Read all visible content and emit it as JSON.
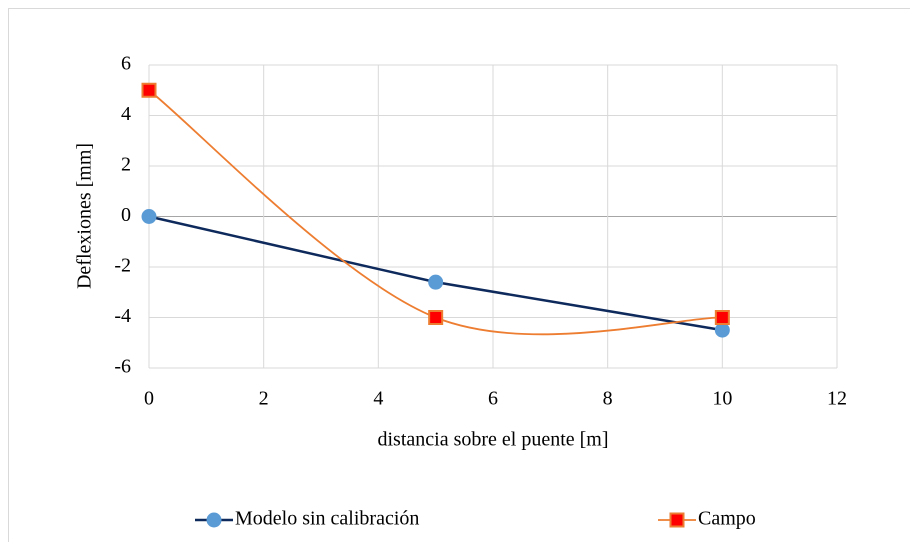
{
  "chart_data": {
    "type": "line",
    "xlabel": "distancia sobre el puente [m]",
    "ylabel": "Deflexiones [mm]",
    "xlim": [
      0,
      12
    ],
    "xticks": [
      0,
      2,
      4,
      6,
      8,
      10,
      12
    ],
    "ylim": [
      -6,
      6
    ],
    "yticks": [
      -6,
      -4,
      -2,
      0,
      2,
      4,
      6
    ],
    "grid": true,
    "legend": "bottom",
    "series": [
      {
        "name": "Modelo sin calibración",
        "color": "#0e2a5c",
        "marker_color": "#5b9bd5",
        "marker": "circle",
        "smooth": false,
        "x": [
          0,
          5,
          10
        ],
        "values": [
          0,
          -2.6,
          -4.5
        ]
      },
      {
        "name": "Campo",
        "color": "#ed7d31",
        "marker_color": "#ff0000",
        "marker": "square",
        "smooth": true,
        "x": [
          0,
          5,
          10
        ],
        "values": [
          5,
          -4,
          -4
        ]
      }
    ]
  }
}
